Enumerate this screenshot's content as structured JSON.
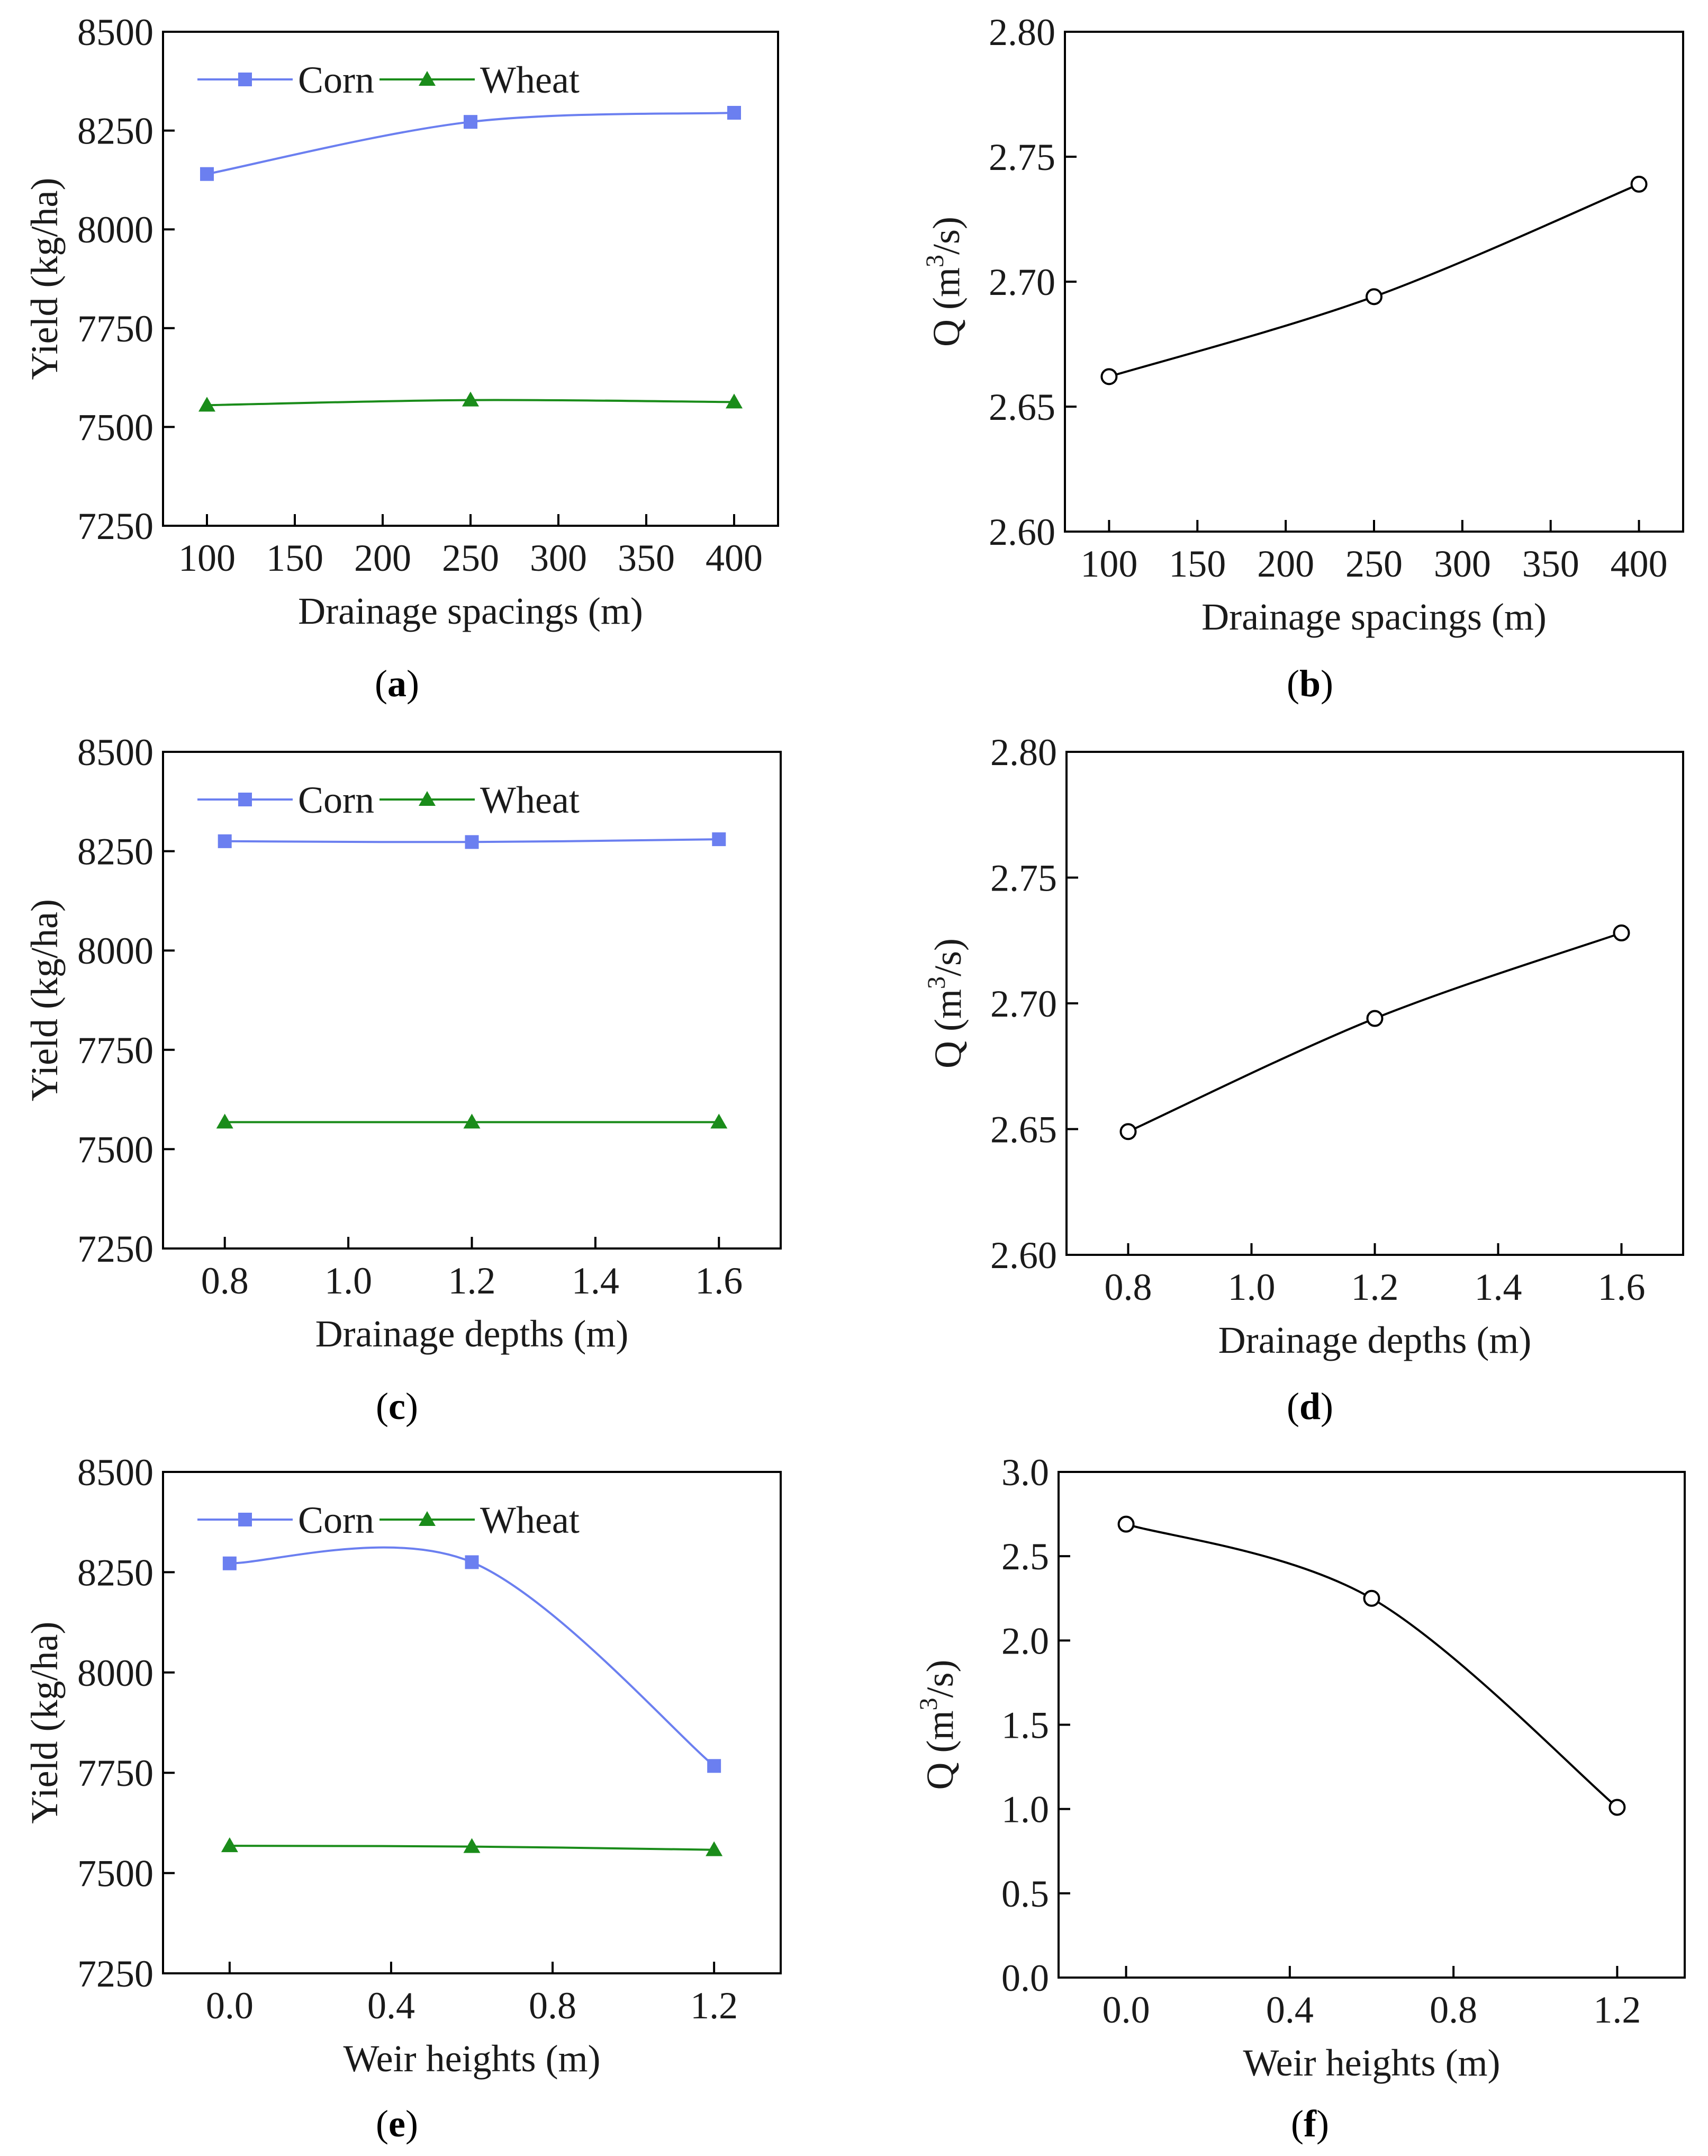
{
  "chart_data": [
    {
      "id": "a",
      "type": "line",
      "panel_label": "a",
      "xlabel": "Drainage spacings (m)",
      "ylabel": "Yield (kg/ha)",
      "xlim": [
        75,
        425
      ],
      "ylim": [
        7250,
        8500
      ],
      "xticks": [
        100,
        150,
        200,
        250,
        300,
        350,
        400
      ],
      "xtick_labels": [
        "100",
        "150",
        "200",
        "250",
        "300",
        "350",
        "400"
      ],
      "yticks": [
        7250,
        7500,
        7750,
        8000,
        8250,
        8500
      ],
      "ytick_labels": [
        "7250",
        "7500",
        "7750",
        "8000",
        "8250",
        "8500"
      ],
      "legend": "top-left",
      "series": [
        {
          "name": "Corn",
          "color": "#6b7ff0",
          "marker": "square",
          "x": [
            100,
            250,
            400
          ],
          "y": [
            8140,
            8272,
            8295
          ]
        },
        {
          "name": "Wheat",
          "color": "#1a8c1a",
          "marker": "triangle",
          "x": [
            100,
            250,
            400
          ],
          "y": [
            7555,
            7568,
            7563
          ]
        }
      ]
    },
    {
      "id": "b",
      "type": "line",
      "panel_label": "b",
      "xlabel": "Drainage spacings (m)",
      "ylabel_prefix": "Q (m",
      "ylabel_sup": "3",
      "ylabel_suffix": "/s)",
      "xlim": [
        75,
        425
      ],
      "ylim": [
        2.6,
        2.8
      ],
      "xticks": [
        100,
        150,
        200,
        250,
        300,
        350,
        400
      ],
      "xtick_labels": [
        "100",
        "150",
        "200",
        "250",
        "300",
        "350",
        "400"
      ],
      "yticks": [
        2.6,
        2.65,
        2.7,
        2.75,
        2.8
      ],
      "ytick_labels": [
        "2.60",
        "2.65",
        "2.70",
        "2.75",
        "2.80"
      ],
      "series": [
        {
          "name": "Q",
          "color": "#000000",
          "marker": "circle",
          "x": [
            100,
            250,
            400
          ],
          "y": [
            2.662,
            2.694,
            2.739
          ]
        }
      ]
    },
    {
      "id": "c",
      "type": "line",
      "panel_label": "c",
      "xlabel": "Drainage depths (m)",
      "ylabel": "Yield (kg/ha)",
      "xlim": [
        0.7,
        1.7
      ],
      "ylim": [
        7250,
        8500
      ],
      "xticks": [
        0.8,
        1.0,
        1.2,
        1.4,
        1.6
      ],
      "xtick_labels": [
        "0.8",
        "1.0",
        "1.2",
        "1.4",
        "1.6"
      ],
      "yticks": [
        7250,
        7500,
        7750,
        8000,
        8250,
        8500
      ],
      "ytick_labels": [
        "7250",
        "7500",
        "7750",
        "8000",
        "8250",
        "8500"
      ],
      "legend": "top-left",
      "series": [
        {
          "name": "Corn",
          "color": "#6b7ff0",
          "marker": "square",
          "x": [
            0.8,
            1.2,
            1.6
          ],
          "y": [
            8275,
            8273,
            8280
          ]
        },
        {
          "name": "Wheat",
          "color": "#1a8c1a",
          "marker": "triangle",
          "x": [
            0.8,
            1.2,
            1.6
          ],
          "y": [
            7568,
            7568,
            7568
          ]
        }
      ]
    },
    {
      "id": "d",
      "type": "line",
      "panel_label": "d",
      "xlabel": "Drainage depths (m)",
      "ylabel_prefix": "Q (m",
      "ylabel_sup": "3",
      "ylabel_suffix": "/s)",
      "xlim": [
        0.7,
        1.7
      ],
      "ylim": [
        2.6,
        2.8
      ],
      "xticks": [
        0.8,
        1.0,
        1.2,
        1.4,
        1.6
      ],
      "xtick_labels": [
        "0.8",
        "1.0",
        "1.2",
        "1.4",
        "1.6"
      ],
      "yticks": [
        2.6,
        2.65,
        2.7,
        2.75,
        2.8
      ],
      "ytick_labels": [
        "2.60",
        "2.65",
        "2.70",
        "2.75",
        "2.80"
      ],
      "series": [
        {
          "name": "Q",
          "color": "#000000",
          "marker": "circle",
          "x": [
            0.8,
            1.2,
            1.6
          ],
          "y": [
            2.649,
            2.694,
            2.728
          ]
        }
      ]
    },
    {
      "id": "e",
      "type": "line",
      "panel_label": "e",
      "xlabel": "Weir heights (m)",
      "ylabel": "Yield (kg/ha)",
      "xlim": [
        -0.165,
        1.365
      ],
      "ylim": [
        7250,
        8500
      ],
      "xticks": [
        0.0,
        0.4,
        0.8,
        1.2
      ],
      "xtick_labels": [
        "0.0",
        "0.4",
        "0.8",
        "1.2"
      ],
      "yticks": [
        7250,
        7500,
        7750,
        8000,
        8250,
        8500
      ],
      "ytick_labels": [
        "7250",
        "7500",
        "7750",
        "8000",
        "8250",
        "8500"
      ],
      "legend": "top-left",
      "series": [
        {
          "name": "Corn",
          "color": "#6b7ff0",
          "marker": "square",
          "x": [
            0.0,
            0.6,
            1.2
          ],
          "y": [
            8272,
            8275,
            7767
          ]
        },
        {
          "name": "Wheat",
          "color": "#1a8c1a",
          "marker": "triangle",
          "x": [
            0.0,
            0.6,
            1.2
          ],
          "y": [
            7568,
            7566,
            7558
          ]
        }
      ]
    },
    {
      "id": "f",
      "type": "line",
      "panel_label": "f",
      "xlabel": "Weir heights (m)",
      "ylabel_prefix": "Q (m",
      "ylabel_sup": "3",
      "ylabel_suffix": "/s)",
      "xlim": [
        -0.165,
        1.365
      ],
      "ylim": [
        0.0,
        3.0
      ],
      "xticks": [
        0.0,
        0.4,
        0.8,
        1.2
      ],
      "xtick_labels": [
        "0.0",
        "0.4",
        "0.8",
        "1.2"
      ],
      "yticks": [
        0.0,
        0.5,
        1.0,
        1.5,
        2.0,
        2.5,
        3.0
      ],
      "ytick_labels": [
        "0.0",
        "0.5",
        "1.0",
        "1.5",
        "2.0",
        "2.5",
        "3.0"
      ],
      "series": [
        {
          "name": "Q",
          "color": "#000000",
          "marker": "circle",
          "x": [
            0.0,
            0.6,
            1.2
          ],
          "y": [
            2.69,
            2.25,
            1.01
          ]
        }
      ]
    }
  ]
}
